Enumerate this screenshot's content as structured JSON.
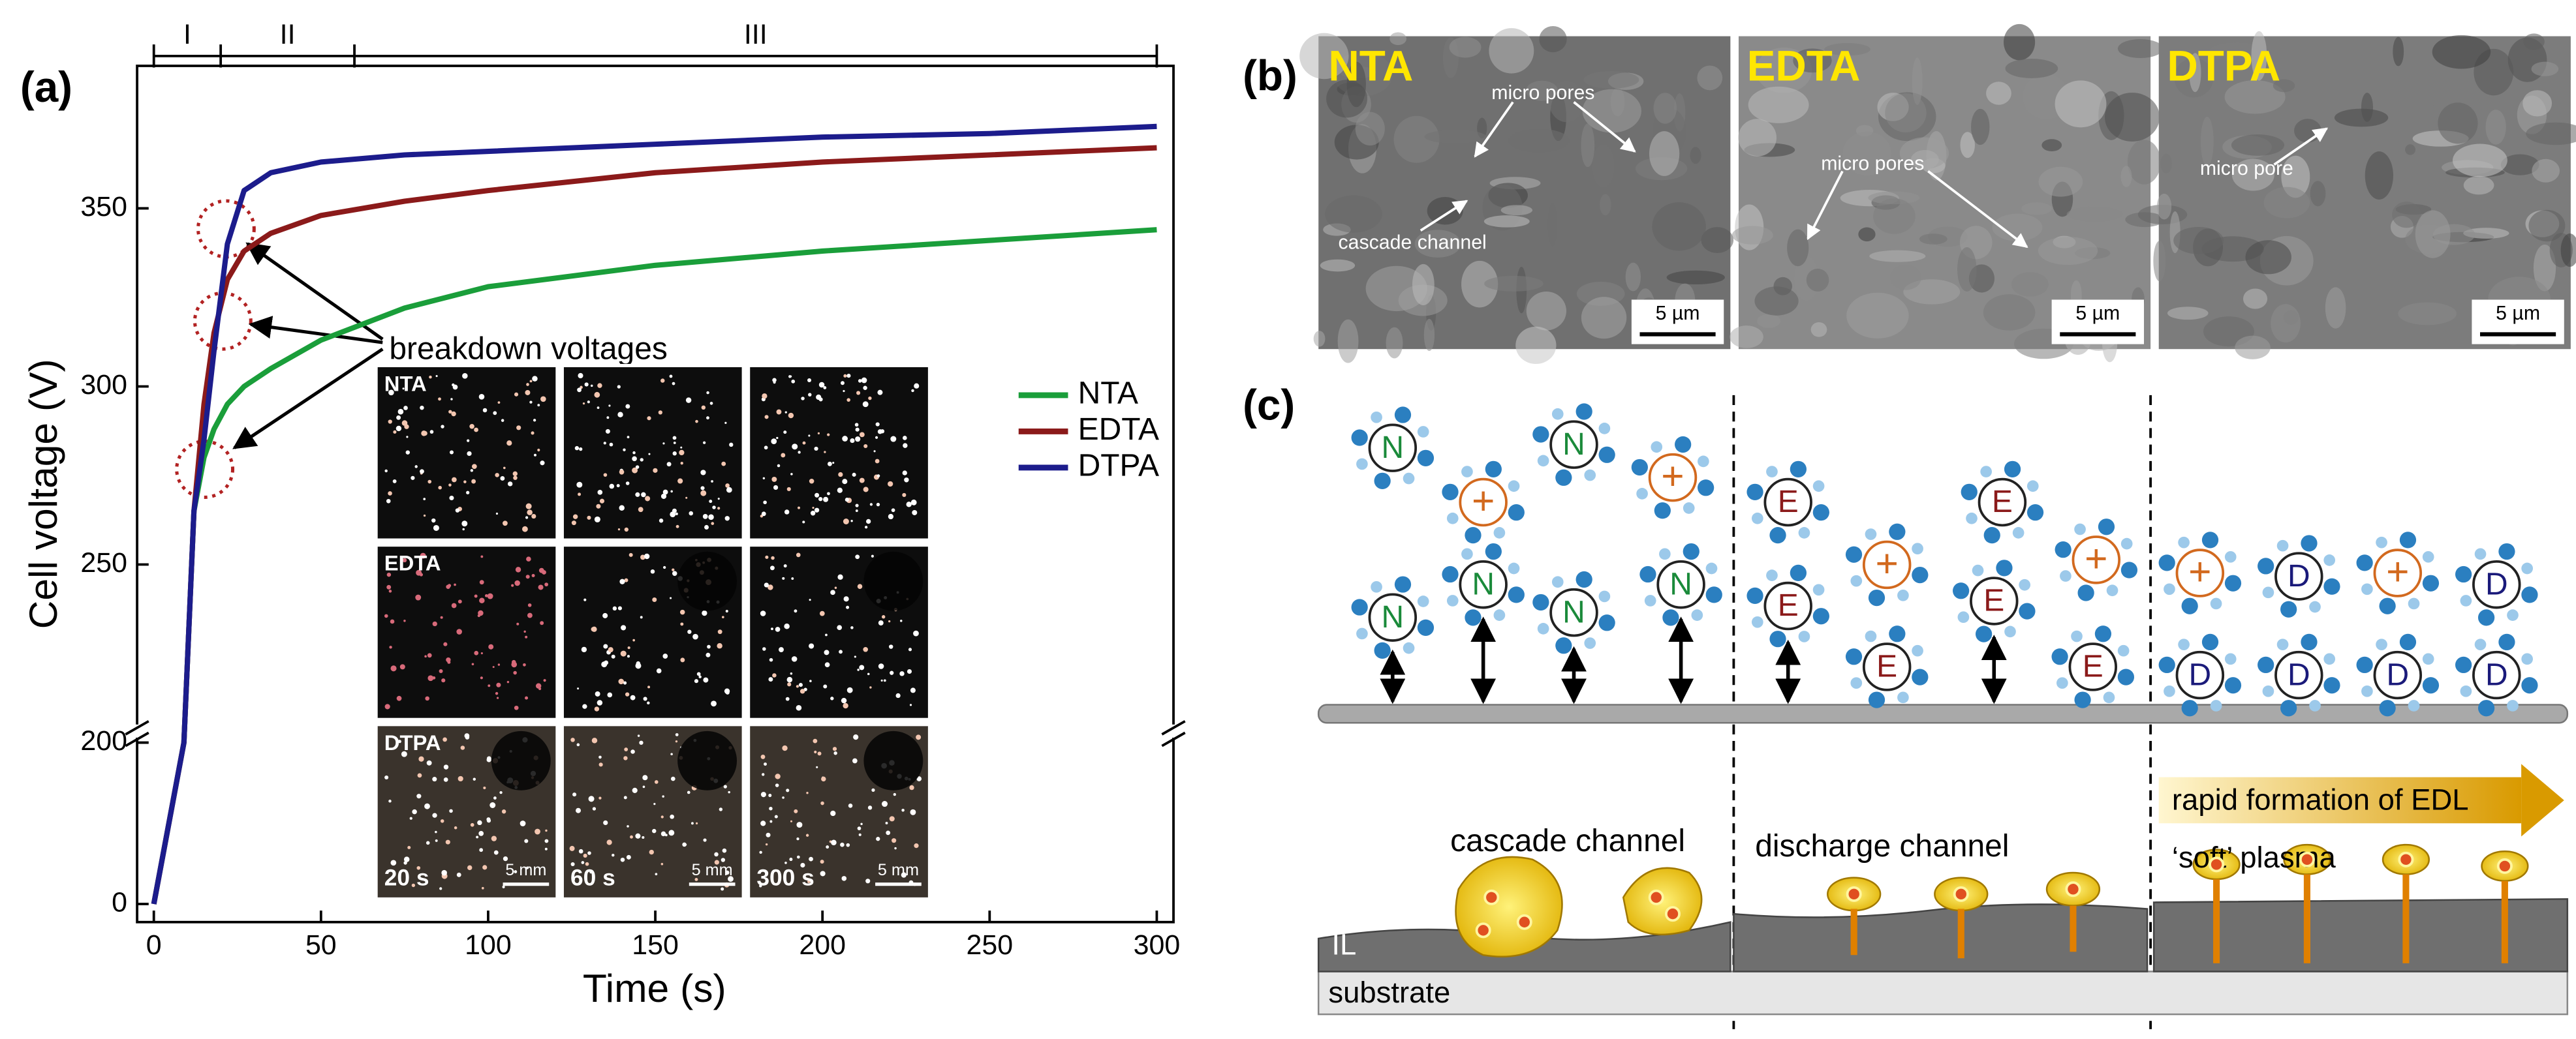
{
  "chart_data": {
    "type": "line",
    "panel_label": "(a)",
    "x_label": "Time (s)",
    "y_label": "Cell voltage (V)",
    "x": [
      0,
      9,
      12,
      15,
      18,
      22,
      27,
      35,
      50,
      75,
      100,
      150,
      200,
      250,
      300
    ],
    "series": [
      {
        "name": "NTA",
        "color": "#1a9e3a",
        "values": [
          0,
          200,
          265,
          280,
          288,
          295,
          300,
          305,
          313,
          322,
          328,
          334,
          338,
          341,
          344
        ]
      },
      {
        "name": "EDTA",
        "color": "#8b1a1a",
        "values": [
          0,
          200,
          265,
          295,
          315,
          330,
          338,
          343,
          348,
          352,
          355,
          360,
          363,
          365,
          367
        ]
      },
      {
        "name": "DTPA",
        "color": "#1c1c8c",
        "values": [
          0,
          200,
          265,
          285,
          310,
          340,
          355,
          360,
          363,
          365,
          366,
          368,
          370,
          371,
          373
        ]
      }
    ],
    "xlim": [
      -5,
      305
    ],
    "ylim": [
      -20,
      390
    ],
    "xticks": [
      0,
      50,
      100,
      150,
      200,
      250,
      300
    ],
    "yticks": [
      0,
      200,
      250,
      300,
      350
    ],
    "y_break": 200,
    "legend": "right",
    "phases": [
      {
        "label": "I",
        "start": 0,
        "end": 20
      },
      {
        "label": "II",
        "start": 20,
        "end": 60
      },
      {
        "label": "III",
        "start": 60,
        "end": 300
      }
    ],
    "annotation": "breakdown voltages",
    "inset": {
      "row_labels": [
        "NTA",
        "EDTA",
        "DTPA"
      ],
      "col_labels": [
        "20 s",
        "60 s",
        "300 s"
      ],
      "scale": "5 mm"
    }
  },
  "panel_b": {
    "label": "(b)",
    "images": [
      {
        "title": "NTA",
        "annotations": [
          "micro pores",
          "cascade channel"
        ],
        "scale": "5 µm"
      },
      {
        "title": "EDTA",
        "annotations": [
          "micro pores"
        ],
        "scale": "5 µm"
      },
      {
        "title": "DTPA",
        "annotations": [
          "micro pore"
        ],
        "scale": "5 µm"
      }
    ]
  },
  "panel_c": {
    "label": "(c)",
    "ion_symbols": [
      "N",
      "E",
      "D",
      "+"
    ],
    "texts": {
      "edl": "rapid formation of EDL",
      "plasma": "‘soft’ plasma",
      "cascade": "cascade channel",
      "discharge": "discharge channel",
      "il": "IL",
      "substrate": "substrate"
    }
  }
}
